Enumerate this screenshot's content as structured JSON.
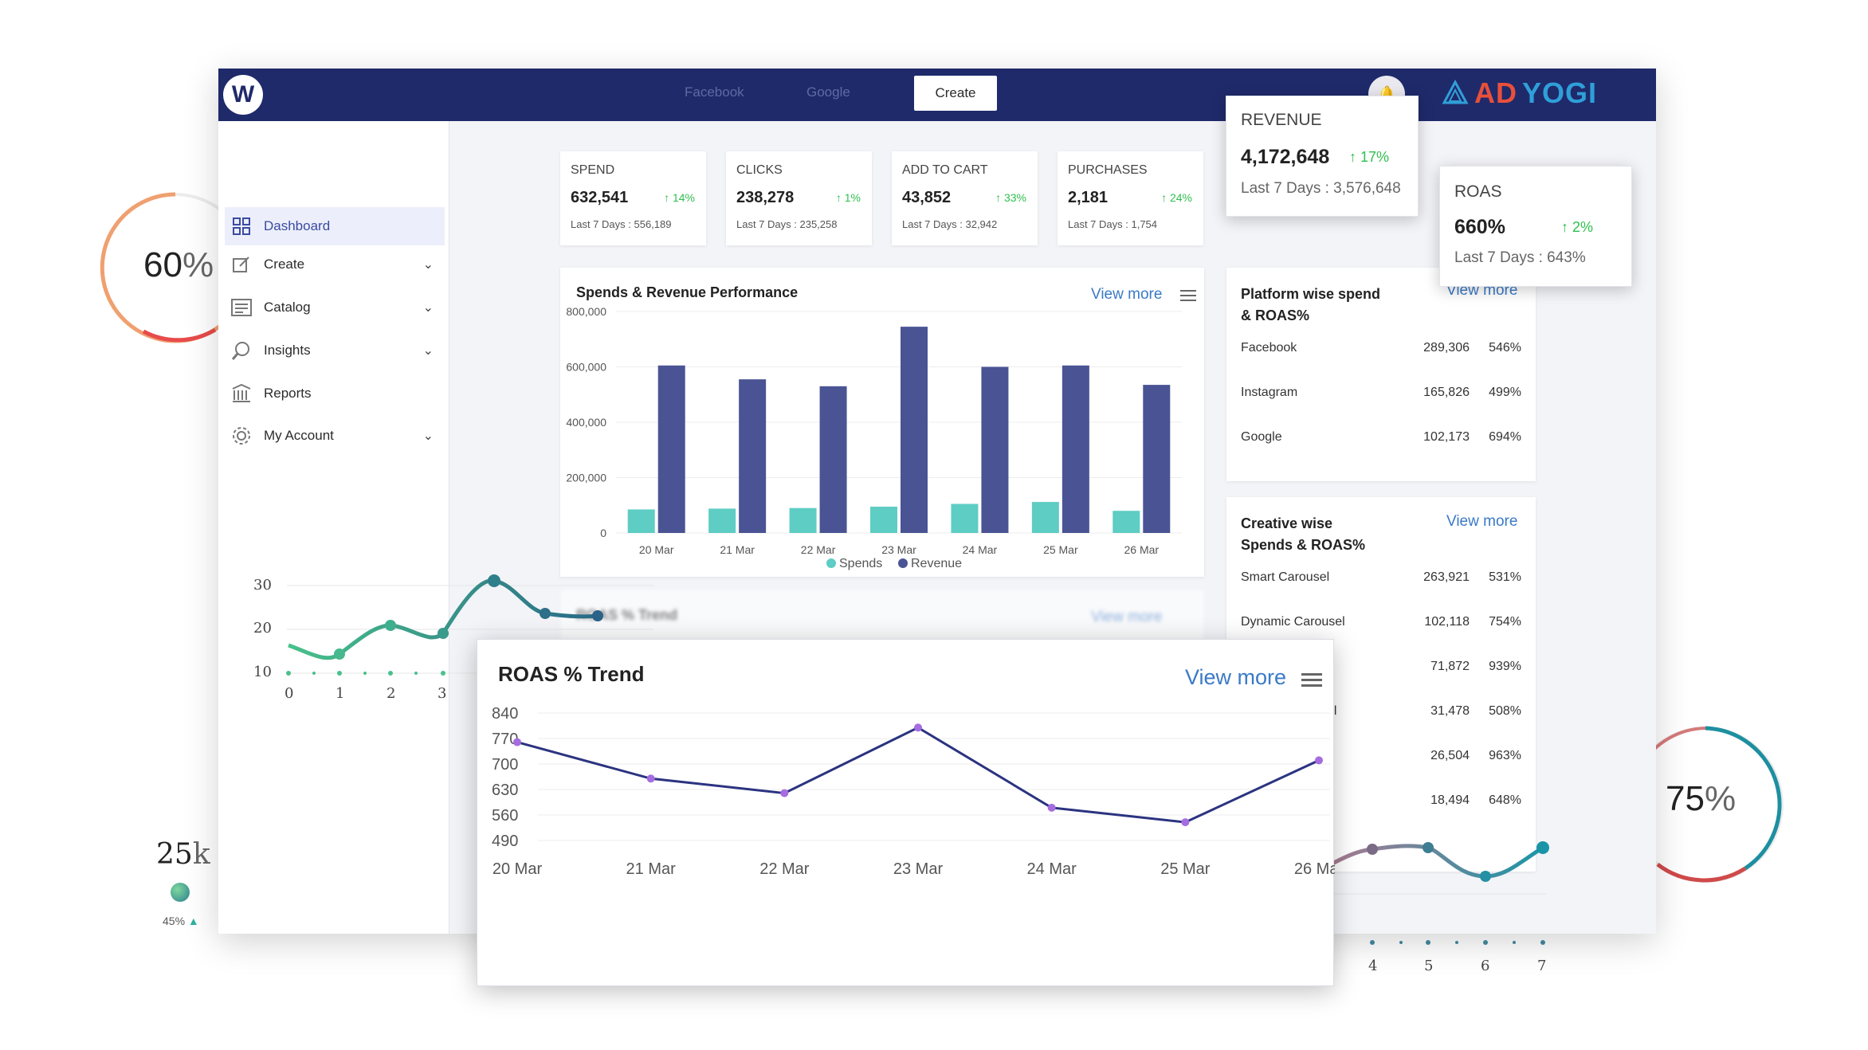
{
  "topbar": {
    "logo_letter": "W",
    "tabs": [
      "Facebook",
      "Google",
      "Create"
    ],
    "brand_a": "AD",
    "brand_b": "YOGI"
  },
  "sidebar": {
    "items": [
      {
        "label": "Dashboard",
        "icon": "dashboard-icon",
        "expandable": false
      },
      {
        "label": "Create",
        "icon": "edit-icon",
        "expandable": true
      },
      {
        "label": "Catalog",
        "icon": "catalog-icon",
        "expandable": true
      },
      {
        "label": "Insights",
        "icon": "insights-icon",
        "expandable": true
      },
      {
        "label": "Reports",
        "icon": "reports-icon",
        "expandable": false
      },
      {
        "label": "My Account",
        "icon": "gear-icon",
        "expandable": true
      }
    ]
  },
  "stats": [
    {
      "label": "SPEND",
      "value": "632,541",
      "change": "14%",
      "sub": "Last 7 Days : 556,189"
    },
    {
      "label": "CLICKS",
      "value": "238,278",
      "change": "1%",
      "sub": "Last 7 Days : 235,258"
    },
    {
      "label": "ADD TO CART",
      "value": "43,852",
      "change": "33%",
      "sub": "Last 7 Days : 32,942"
    },
    {
      "label": "PURCHASES",
      "value": "2,181",
      "change": "24%",
      "sub": "Last 7 Days : 1,754"
    }
  ],
  "revenue_card": {
    "label": "REVENUE",
    "value": "4,172,648",
    "change": "17%",
    "sub": "Last 7 Days : 3,576,648"
  },
  "roas_card": {
    "label": "ROAS",
    "value": "660%",
    "change": "2%",
    "sub": "Last 7 Days : 643%"
  },
  "spends_panel": {
    "title": "Spends & Revenue Performance",
    "view_more": "View more"
  },
  "roas_blur": {
    "title": "ROAS % Trend",
    "view_more": "View more"
  },
  "platform_panel": {
    "title_line1": "Platform wise spend",
    "title_line2": "& ROAS%",
    "view_more": "View more",
    "rows": [
      {
        "name": "Facebook",
        "spend": "289,306",
        "roas": "546%"
      },
      {
        "name": "Instagram",
        "spend": "165,826",
        "roas": "499%"
      },
      {
        "name": "Google",
        "spend": "102,173",
        "roas": "694%"
      }
    ]
  },
  "creative_panel": {
    "title_line1": "Creative wise",
    "title_line2": "Spends & ROAS%",
    "view_more": "View more",
    "rows": [
      {
        "name": "Smart Carousel",
        "spend": "263,921",
        "roas": "531%"
      },
      {
        "name": "Dynamic Carousel",
        "spend": "102,118",
        "roas": "754%"
      },
      {
        "name": "",
        "spend": "71,872",
        "roas": "939%"
      },
      {
        "name": "sel",
        "spend": "31,478",
        "roas": "508%"
      },
      {
        "name": "",
        "spend": "26,504",
        "roas": "963%"
      },
      {
        "name": "",
        "spend": "18,494",
        "roas": "648%"
      }
    ]
  },
  "trend_card": {
    "title": "ROAS %  Trend",
    "view_more": "View more"
  },
  "decor": {
    "gauge_left": {
      "value": "60",
      "unit": "%"
    },
    "gauge_right": {
      "value": "75",
      "unit": "%"
    },
    "kpi_value": "25",
    "kpi_unit": "k",
    "kpi_pct": "45%",
    "mini_left_y": [
      "30",
      "20",
      "10"
    ],
    "mini_left_x": [
      "0",
      "1",
      "2",
      "3"
    ],
    "mini_right_x": [
      "4",
      "5",
      "6",
      "7"
    ]
  },
  "chart_data": [
    {
      "type": "bar",
      "title": "Spends & Revenue Performance",
      "categories": [
        "20 Mar",
        "21 Mar",
        "22 Mar",
        "23 Mar",
        "24 Mar",
        "25 Mar",
        "26 Mar"
      ],
      "series": [
        {
          "name": "Spends",
          "values": [
            85000,
            88000,
            90000,
            95000,
            105000,
            112000,
            80000
          ]
        },
        {
          "name": "Revenue",
          "values": [
            605000,
            555000,
            530000,
            745000,
            600000,
            605000,
            535000
          ]
        }
      ],
      "yticks": [
        "800,000",
        "600,000",
        "400,000",
        "200,000",
        "0"
      ],
      "ylim": [
        0,
        800000
      ],
      "legend": "bottom",
      "colors": [
        "#5ecdc4",
        "#4a5494"
      ]
    },
    {
      "type": "line",
      "title": "ROAS %  Trend",
      "categories": [
        "20 Mar",
        "21 Mar",
        "22 Mar",
        "23 Mar",
        "24 Mar",
        "25 Mar",
        "26 Mar"
      ],
      "series": [
        {
          "values": [
            760,
            660,
            620,
            800,
            580,
            540,
            710
          ]
        }
      ],
      "yticks": [
        "840",
        "770",
        "700",
        "630",
        "560",
        "490"
      ],
      "ylim": [
        490,
        840
      ],
      "colors": [
        "#2b3380",
        "#a56de0"
      ]
    }
  ]
}
